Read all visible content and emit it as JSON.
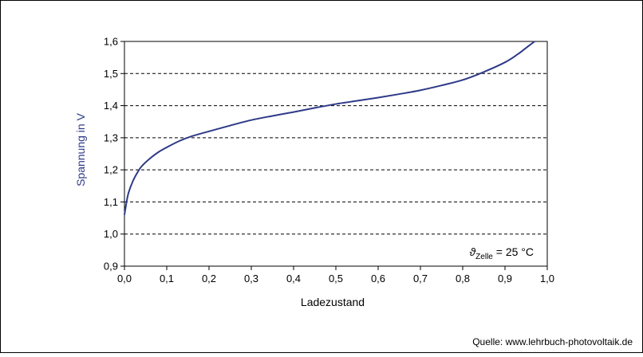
{
  "chart_data": {
    "type": "line",
    "xlabel": "Ladezustand",
    "ylabel": "Spannung in V",
    "xlim": [
      0.0,
      1.0
    ],
    "ylim": [
      0.9,
      1.6
    ],
    "x_ticks": [
      "0,0",
      "0,1",
      "0,2",
      "0,3",
      "0,4",
      "0,5",
      "0,6",
      "0,7",
      "0,8",
      "0,9",
      "1,0"
    ],
    "y_ticks": [
      "0,9",
      "1,0",
      "1,1",
      "1,2",
      "1,3",
      "1,4",
      "1,5",
      "1,6"
    ],
    "grid": "dashed horizontal",
    "annotation": {
      "symbol": "ϑ",
      "subscript": "Zelle",
      "text": " = 25 °C"
    },
    "series": [
      {
        "color": "#2e3a87",
        "x": [
          0.0,
          0.005,
          0.01,
          0.02,
          0.03,
          0.04,
          0.06,
          0.08,
          0.1,
          0.13,
          0.16,
          0.2,
          0.25,
          0.3,
          0.35,
          0.4,
          0.45,
          0.5,
          0.55,
          0.6,
          0.65,
          0.7,
          0.75,
          0.8,
          0.85,
          0.9,
          0.93,
          0.95,
          0.97
        ],
        "y": [
          1.06,
          1.1,
          1.13,
          1.165,
          1.19,
          1.21,
          1.235,
          1.255,
          1.27,
          1.29,
          1.305,
          1.32,
          1.338,
          1.355,
          1.368,
          1.38,
          1.393,
          1.405,
          1.415,
          1.425,
          1.436,
          1.448,
          1.463,
          1.48,
          1.505,
          1.535,
          1.56,
          1.58,
          1.6
        ]
      }
    ]
  },
  "source": "Quelle: www.lehrbuch-photovoltaik.de",
  "colors": {
    "curve": "#2e3a87",
    "ylabel": "#2e3a87",
    "grid": "#000000"
  }
}
